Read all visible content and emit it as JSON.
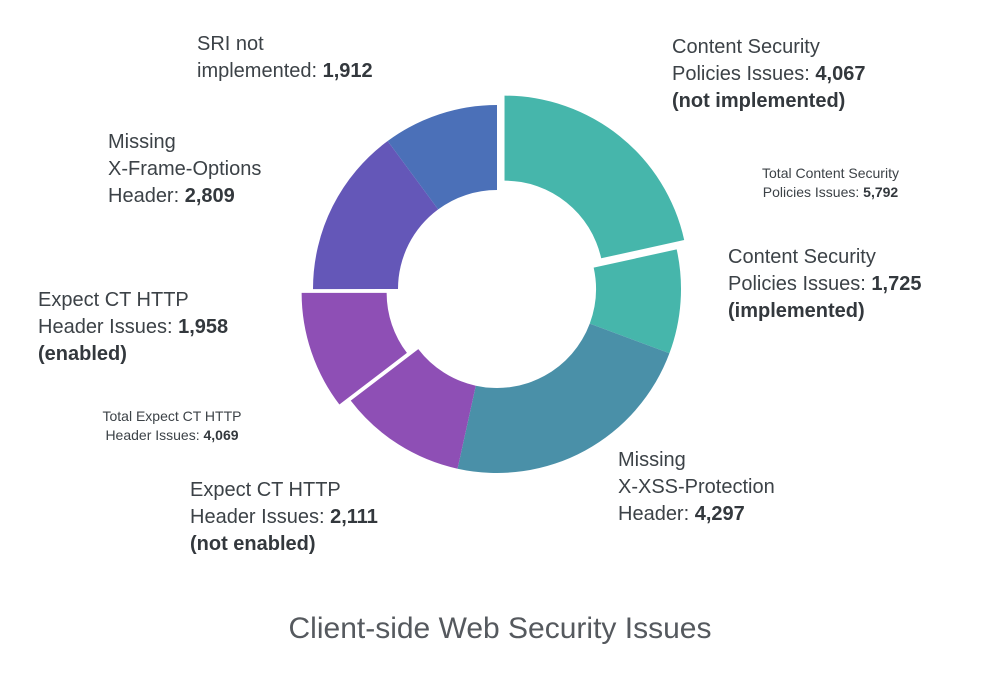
{
  "title": "Client-side Web Security Issues",
  "chart_data": {
    "type": "pie",
    "subtype": "donut",
    "title": "Client-side Web Security Issues",
    "direction": "clockwise",
    "start_angle_deg": -90,
    "total": 18879,
    "legend_position": "none",
    "segments": [
      {
        "name": "Content Security Policies Issues (not implemented)",
        "value": 4067,
        "color": "#46b6ab",
        "exploded": true
      },
      {
        "name": "Content Security Policies Issues (implemented)",
        "value": 1725,
        "color": "#46b6ab",
        "exploded": false
      },
      {
        "name": "Missing X-XSS-Protection Header",
        "value": 4297,
        "color": "#4a90a8",
        "exploded": false
      },
      {
        "name": "Expect CT HTTP Header Issues (not enabled)",
        "value": 2111,
        "color": "#8e4fb5",
        "exploded": false
      },
      {
        "name": "Expect CT HTTP Header Issues (enabled)",
        "value": 1958,
        "color": "#8e4fb5",
        "exploded": true
      },
      {
        "name": "Missing X-Frame-Options Header",
        "value": 2809,
        "color": "#6457b8",
        "exploded": false
      },
      {
        "name": "SRI not implemented",
        "value": 1912,
        "color": "#4b70b8",
        "exploded": false
      }
    ],
    "group_totals": [
      {
        "name": "Total Content Security Policies Issues",
        "value": 5792
      },
      {
        "name": "Total Expect CT HTTP Header Issues",
        "value": 4069
      }
    ]
  },
  "labels": {
    "sri": {
      "line1": "SRI not",
      "line2_prefix": "implemented: ",
      "line2_value": "1,912"
    },
    "csp_not_implemented": {
      "line1": "Content Security",
      "line2_prefix": "Policies Issues: ",
      "line2_value": "4,067",
      "line3": "(not implemented)"
    },
    "csp_total": {
      "line1": "Total Content Security",
      "line2_prefix": "Policies Issues: ",
      "line2_value": "5,792"
    },
    "csp_implemented": {
      "line1": "Content Security",
      "line2_prefix": "Policies Issues: ",
      "line2_value": "1,725",
      "line3": "(implemented)"
    },
    "xss": {
      "line1": "Missing",
      "line2": "X-XSS-Protection",
      "line3_prefix": "Header: ",
      "line3_value": "4,297"
    },
    "expect_not_enabled": {
      "line1": "Expect CT HTTP",
      "line2_prefix": "Header Issues: ",
      "line2_value": "2,111",
      "line3": "(not enabled)"
    },
    "expect_total": {
      "line1": "Total Expect CT HTTP",
      "line2_prefix": "Header Issues: ",
      "line2_value": "4,069"
    },
    "expect_enabled": {
      "line1": "Expect CT HTTP",
      "line2_prefix": "Header Issues: ",
      "line2_value": "1,958",
      "line3": "(enabled)"
    },
    "xframe": {
      "line1": "Missing",
      "line2": "X-Frame-Options",
      "line3_prefix": "Header: ",
      "line3_value": "2,809"
    }
  }
}
